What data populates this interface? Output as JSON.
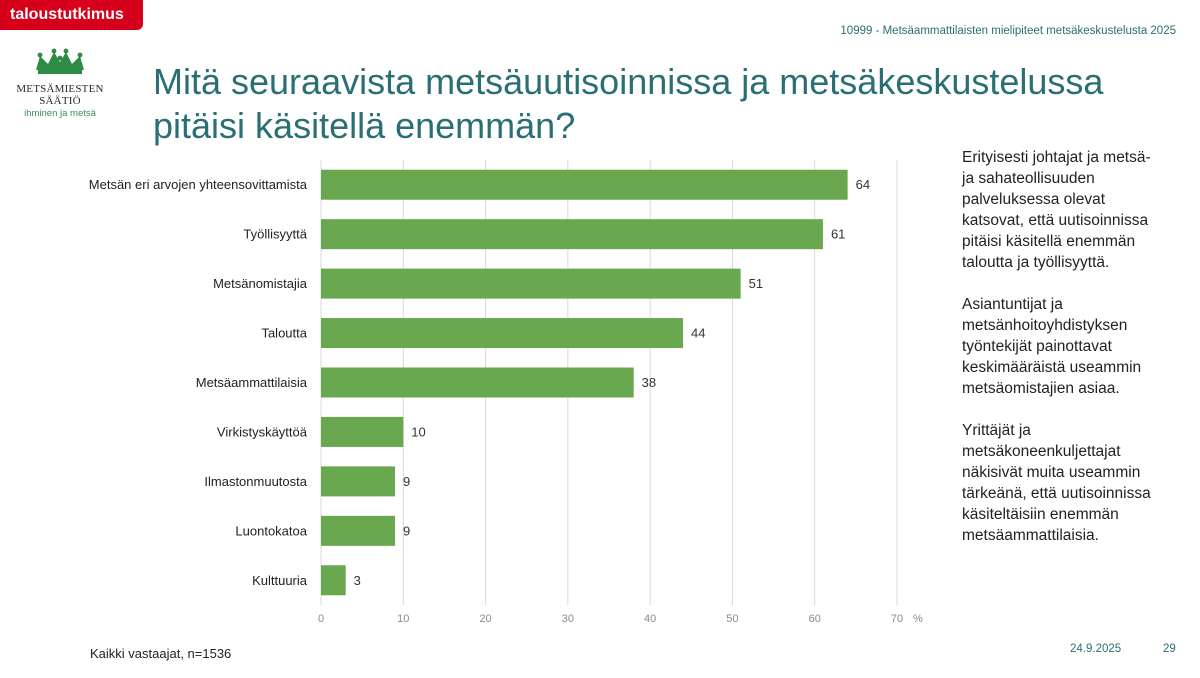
{
  "header": {
    "badge": "taloustutkimus",
    "study": "10999 - Metsäammattilaisten mielipiteet metsäkeskustelusta 2025"
  },
  "logo": {
    "name": "METSÄMIESTEN SÄÄTIÖ",
    "tagline": "ihminen ja metsä",
    "icon": "crown-icon",
    "color": "#2e8b45"
  },
  "title_lines": [
    "Mitä seuraavista metsäuutisoinnissa ja metsäkeskustelussa",
    "pitäisi käsitellä enemmän?"
  ],
  "chart_data": {
    "type": "bar",
    "orientation": "horizontal",
    "categories": [
      "Metsän eri arvojen yhteensovittamista",
      "Työllisyyttä",
      "Metsänomistajia",
      "Taloutta",
      "Metsäammattilaisia",
      "Virkistyskäyttöä",
      "Ilmastonmuutosta",
      "Luontokatoa",
      "Kulttuuria"
    ],
    "values": [
      64,
      61,
      51,
      44,
      38,
      10,
      9,
      9,
      3
    ],
    "xlim": [
      0,
      70
    ],
    "xticks": [
      0,
      10,
      20,
      30,
      40,
      50,
      60,
      70
    ],
    "unit": "%",
    "bar_color": "#6aa84f",
    "grid": true
  },
  "commentary": [
    "Erityisesti johtajat ja metsä- ja sahateollisuuden palveluksessa olevat katsovat, että uutisoinnissa pitäisi käsitellä enemmän taloutta ja työllisyyttä.",
    "Asiantuntijat ja metsänhoitoyhdistyksen työntekijät painottavat keskimääräistä useammin metsäomistajien asiaa.",
    "Yrittäjät ja metsäkoneenkuljettajat näkisivät muita useammin tärkeänä, että uutisoinnissa käsiteltäisiin enemmän metsäammattilaisia."
  ],
  "footer": {
    "note": "Kaikki vastaajat, n=1536",
    "date": "24.9.2025",
    "page": "29"
  }
}
